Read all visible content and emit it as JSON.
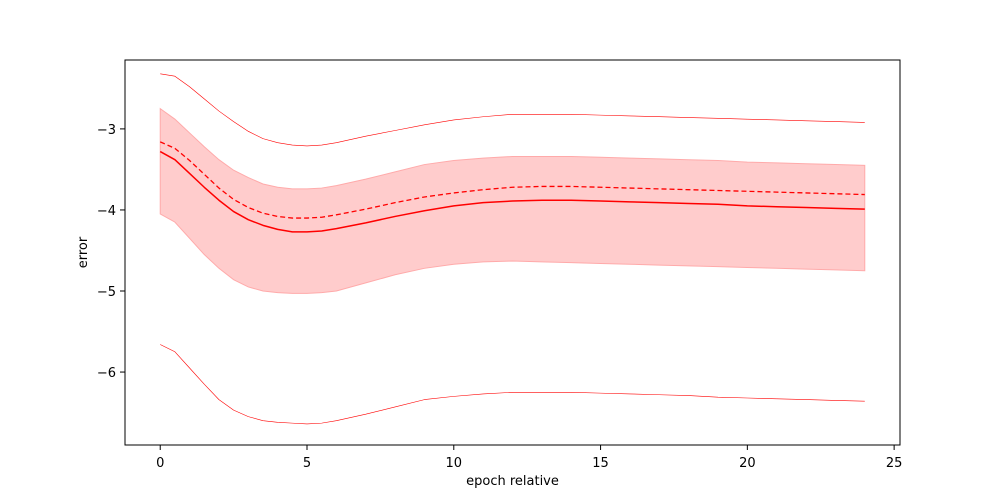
{
  "chart_data": {
    "type": "line",
    "title": "",
    "xlabel": "epoch relative",
    "ylabel": "error",
    "xlim": [
      -1.2,
      25.2
    ],
    "ylim": [
      -6.9,
      -2.15
    ],
    "xticks": [
      0,
      5,
      10,
      15,
      20,
      25
    ],
    "yticks": [
      -3,
      -4,
      -5,
      -6
    ],
    "xtick_labels": [
      "0",
      "5",
      "10",
      "15",
      "20",
      "25"
    ],
    "ytick_labels": [
      "−3",
      "−4",
      "−5",
      "−6"
    ],
    "grid": false,
    "color": "#ff0000",
    "band_color": "#ffcccc",
    "x": [
      0,
      0.5,
      1,
      1.5,
      2,
      2.5,
      3,
      3.5,
      4,
      4.5,
      5,
      5.5,
      6,
      7,
      8,
      9,
      10,
      11,
      12,
      13,
      14,
      15,
      16,
      17,
      18,
      19,
      20,
      21,
      22,
      23,
      24
    ],
    "series": [
      {
        "style": "solid",
        "values": [
          -3.28,
          -3.38,
          -3.55,
          -3.72,
          -3.88,
          -4.02,
          -4.12,
          -4.19,
          -4.24,
          -4.27,
          -4.27,
          -4.26,
          -4.23,
          -4.16,
          -4.08,
          -4.01,
          -3.95,
          -3.91,
          -3.89,
          -3.88,
          -3.88,
          -3.89,
          -3.9,
          -3.91,
          -3.92,
          -3.93,
          -3.95,
          -3.96,
          -3.97,
          -3.98,
          -3.99
        ]
      },
      {
        "style": "dashed",
        "values": [
          -3.16,
          -3.24,
          -3.39,
          -3.56,
          -3.73,
          -3.87,
          -3.97,
          -4.04,
          -4.08,
          -4.1,
          -4.1,
          -4.09,
          -4.06,
          -3.99,
          -3.91,
          -3.84,
          -3.79,
          -3.75,
          -3.72,
          -3.71,
          -3.71,
          -3.72,
          -3.73,
          -3.74,
          -3.75,
          -3.76,
          -3.77,
          -3.78,
          -3.79,
          -3.8,
          -3.81
        ]
      },
      {
        "style": "thin",
        "values": [
          -2.32,
          -2.35,
          -2.48,
          -2.63,
          -2.78,
          -2.91,
          -3.03,
          -3.12,
          -3.17,
          -3.2,
          -3.21,
          -3.2,
          -3.17,
          -3.09,
          -3.02,
          -2.95,
          -2.89,
          -2.85,
          -2.82,
          -2.82,
          -2.82,
          -2.83,
          -2.84,
          -2.85,
          -2.86,
          -2.87,
          -2.88,
          -2.89,
          -2.9,
          -2.91,
          -2.92
        ]
      },
      {
        "style": "thin",
        "values": [
          -5.66,
          -5.75,
          -5.95,
          -6.15,
          -6.34,
          -6.47,
          -6.55,
          -6.6,
          -6.62,
          -6.63,
          -6.64,
          -6.63,
          -6.6,
          -6.52,
          -6.43,
          -6.34,
          -6.3,
          -6.27,
          -6.25,
          -6.25,
          -6.25,
          -6.26,
          -6.27,
          -6.28,
          -6.29,
          -6.31,
          -6.32,
          -6.33,
          -6.34,
          -6.35,
          -6.36
        ]
      }
    ],
    "band": {
      "upper": [
        -2.75,
        -2.88,
        -3.05,
        -3.22,
        -3.38,
        -3.51,
        -3.6,
        -3.68,
        -3.72,
        -3.74,
        -3.74,
        -3.73,
        -3.7,
        -3.62,
        -3.53,
        -3.44,
        -3.39,
        -3.36,
        -3.34,
        -3.34,
        -3.34,
        -3.35,
        -3.36,
        -3.37,
        -3.38,
        -3.39,
        -3.41,
        -3.42,
        -3.43,
        -3.44,
        -3.45
      ],
      "lower": [
        -4.05,
        -4.15,
        -4.35,
        -4.55,
        -4.72,
        -4.86,
        -4.95,
        -5.0,
        -5.02,
        -5.03,
        -5.03,
        -5.02,
        -5.0,
        -4.9,
        -4.8,
        -4.72,
        -4.67,
        -4.64,
        -4.63,
        -4.64,
        -4.65,
        -4.66,
        -4.67,
        -4.68,
        -4.69,
        -4.7,
        -4.71,
        -4.72,
        -4.73,
        -4.74,
        -4.75
      ]
    }
  }
}
